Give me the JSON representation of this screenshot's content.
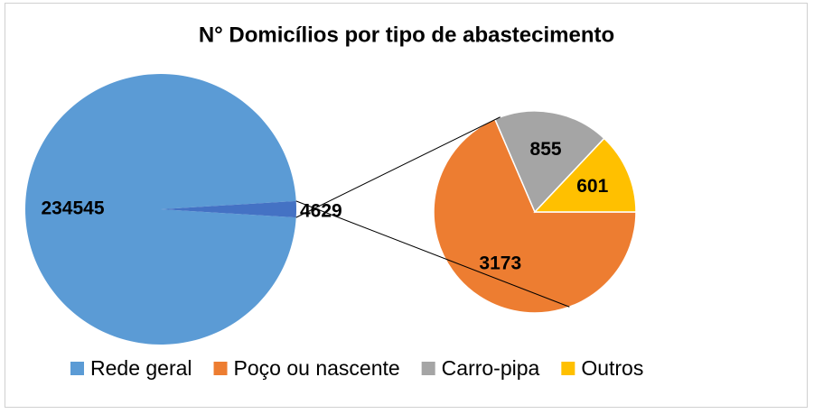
{
  "chart_data": {
    "type": "pie-of-pie",
    "title": "N° Domicílios por tipo de abastecimento",
    "categories": [
      "Rede geral",
      "Poço ou nascente",
      "Carro-pipa",
      "Outros"
    ],
    "colors": [
      "#5b9bd5",
      "#ed7d31",
      "#a5a5a5",
      "#ffc000"
    ],
    "main_values": [
      234545,
      4629
    ],
    "main_colors": [
      "#5b9bd5",
      "#4472c4"
    ],
    "sub_values": [
      3173,
      855,
      601
    ]
  }
}
